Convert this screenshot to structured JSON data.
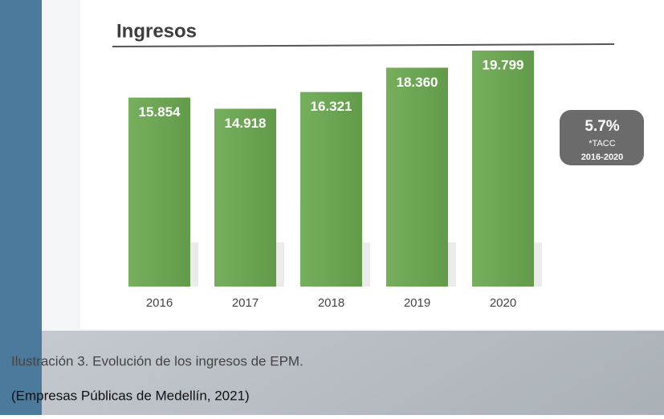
{
  "chart_data": {
    "type": "bar",
    "title": "Ingresos",
    "categories": [
      "2016",
      "2017",
      "2018",
      "2019",
      "2020"
    ],
    "values": [
      15854,
      14918,
      16321,
      18360,
      19799
    ],
    "value_labels": [
      "15.854",
      "14.918",
      "16.321",
      "18.360",
      "19.799"
    ],
    "color": "#6aa84f",
    "badge": {
      "value": "5.7%",
      "label": "*TACC",
      "period": "2016-2020"
    }
  },
  "caption": {
    "title": "Ilustración 3. Evolución de los ingresos de EPM.",
    "source": "(Empresas Públicas de Medellín, 2021)"
  }
}
